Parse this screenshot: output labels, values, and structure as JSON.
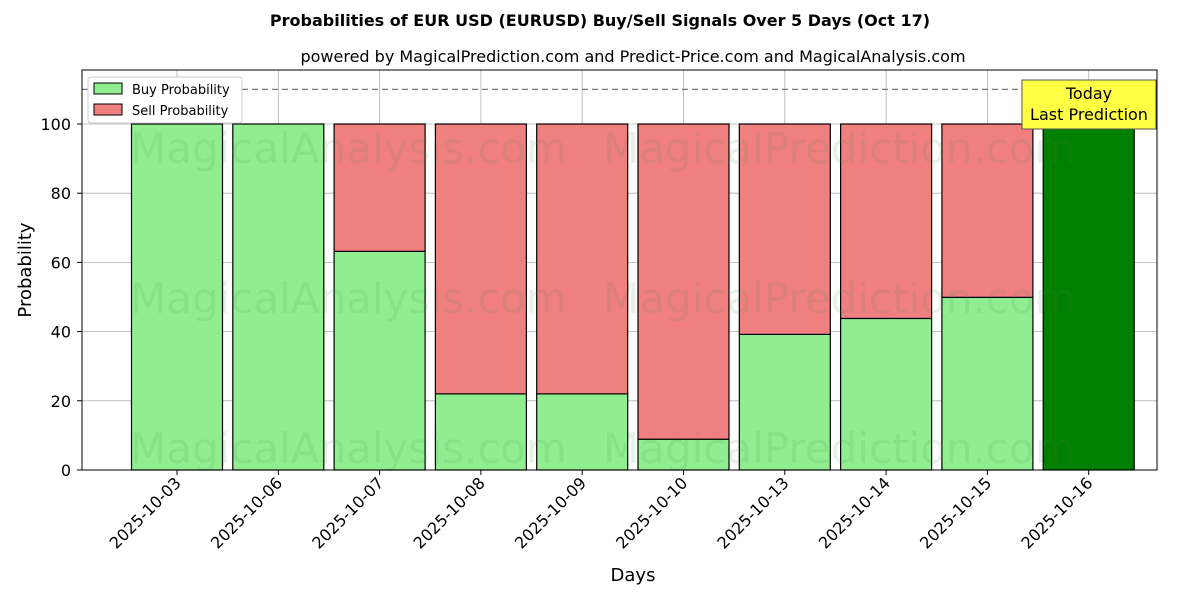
{
  "chart_data": {
    "type": "bar",
    "stacked": true,
    "title": "Probabilities of EUR USD (EURUSD) Buy/Sell Signals Over 5 Days (Oct 17)",
    "subtitle": "powered by MagicalPrediction.com and Predict-Price.com and MagicalAnalysis.com",
    "xlabel": "Days",
    "ylabel": "Probability",
    "ylim": [
      0,
      115
    ],
    "yticks": [
      0,
      20,
      40,
      60,
      80,
      100
    ],
    "grid": true,
    "reference_line": 110,
    "legend_placement": "top-left",
    "categories": [
      "2025-10-03",
      "2025-10-06",
      "2025-10-07",
      "2025-10-08",
      "2025-10-09",
      "2025-10-10",
      "2025-10-13",
      "2025-10-14",
      "2025-10-15",
      "2025-10-16"
    ],
    "series": [
      {
        "name": "Buy Probability",
        "color": "#90ee90",
        "values": [
          100,
          100,
          63.2,
          22,
          22,
          8.9,
          39.2,
          43.8,
          49.9,
          100
        ]
      },
      {
        "name": "Sell Probability",
        "color": "#f08080",
        "values": [
          0,
          0,
          36.8,
          78,
          78,
          91.1,
          60.8,
          56.2,
          50.1,
          0
        ]
      }
    ],
    "highlight_color": "#008000",
    "annotation": {
      "line1": "Today",
      "line2": "Last Prediction",
      "color": "#ffff44"
    },
    "watermarks": [
      "MagicalAnalysis.com",
      "MagicalPrediction.com"
    ]
  }
}
